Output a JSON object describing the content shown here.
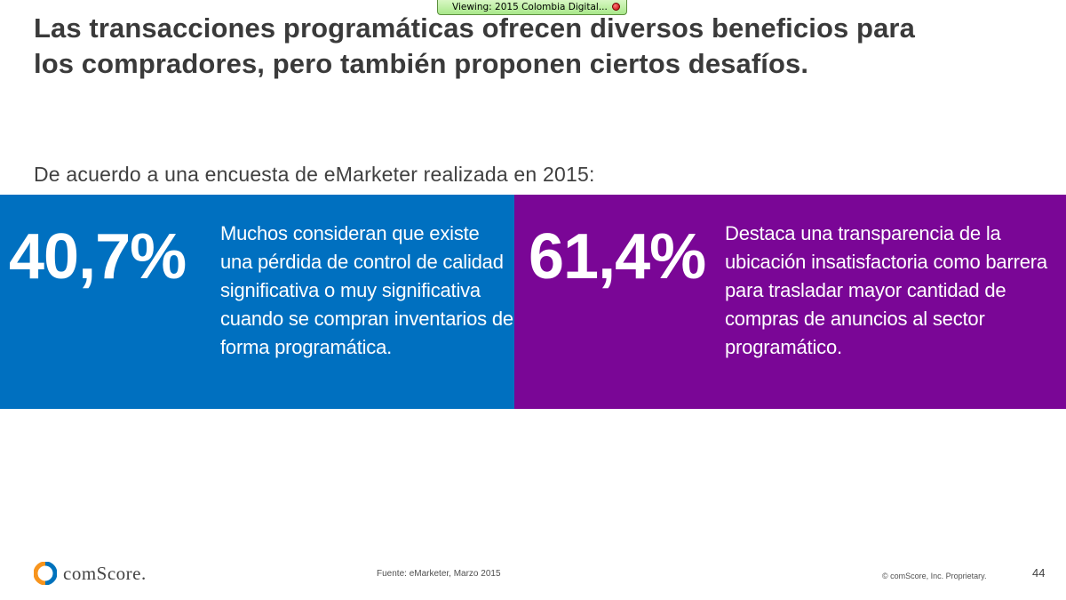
{
  "viewing_badge": {
    "text": "Viewing: 2015 Colombia Digital..."
  },
  "slide": {
    "title_line1": "Las transacciones programáticas ofrecen diversos beneficios para",
    "title_line2": "los compradores, pero también proponen ciertos desafíos.",
    "subtitle": "De acuerdo a una encuesta de eMarketer realizada en 2015:",
    "panels": [
      {
        "stat": "40,7%",
        "description": "Muchos consideran que existe una pérdida de control de calidad significativa o muy significativa cuando se compran inventarios de forma programática.",
        "color": "#0070c0"
      },
      {
        "stat": "61,4%",
        "description": "Destaca una transparencia de la ubicación insatisfactoria como barrera para trasladar mayor cantidad de compras de anuncios al sector programático.",
        "color": "#7a0696"
      }
    ]
  },
  "footer": {
    "logo_text": "comScore.",
    "source": "Fuente: eMarketer, Marzo 2015",
    "copyright": "© comScore, Inc. Proprietary.",
    "page_number": "44"
  },
  "colors": {
    "title": "#3a3a3a",
    "logo_orange": "#f7941d",
    "logo_blue": "#0072bc"
  }
}
